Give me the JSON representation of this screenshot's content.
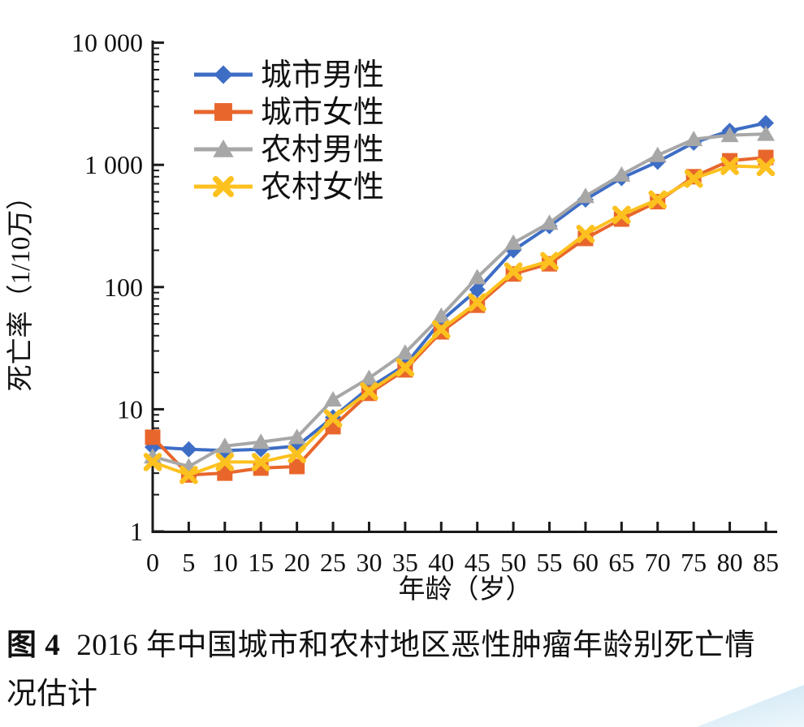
{
  "figure": {
    "caption_label": "图 4",
    "caption_text": "2016 年中国城市和农村地区恶性肿瘤年龄别死亡情况估计"
  },
  "chart_data": {
    "type": "line",
    "title": "",
    "xlabel": "年龄（岁）",
    "ylabel": "死亡率（1/10万）",
    "x": [
      0,
      5,
      10,
      15,
      20,
      25,
      30,
      35,
      40,
      45,
      50,
      55,
      60,
      65,
      70,
      75,
      80,
      85
    ],
    "y_scale": "log10",
    "ylim": [
      1,
      10000
    ],
    "ytick_values": [
      1,
      10,
      100,
      1000,
      10000
    ],
    "ytick_labels": [
      "1",
      "10",
      "100",
      "1 000",
      "10 000"
    ],
    "grid": false,
    "legend_position": "top-left-inside",
    "axis_color": "#1a1a1a",
    "series": [
      {
        "name": "城市男性",
        "marker": "diamond",
        "color": "#3d6dc5",
        "values": [
          4.9,
          4.7,
          4.6,
          4.7,
          5.0,
          8.6,
          15,
          23,
          53,
          95,
          200,
          315,
          520,
          780,
          1060,
          1520,
          1900,
          2200
        ]
      },
      {
        "name": "城市女性",
        "marker": "square",
        "color": "#e8662c",
        "values": [
          5.9,
          2.9,
          3.0,
          3.3,
          3.4,
          7.2,
          13.5,
          21,
          43,
          71,
          128,
          155,
          250,
          360,
          500,
          800,
          1080,
          1150
        ]
      },
      {
        "name": "农村男性",
        "marker": "triangle",
        "color": "#a7a7a7",
        "values": [
          4.1,
          3.4,
          5.0,
          5.4,
          5.9,
          12,
          18,
          29,
          58,
          120,
          230,
          335,
          555,
          830,
          1200,
          1620,
          1750,
          1790
        ]
      },
      {
        "name": "农村女性",
        "marker": "x",
        "color": "#fdc11f",
        "values": [
          3.7,
          2.9,
          3.7,
          3.7,
          4.3,
          8.4,
          14,
          22,
          45,
          75,
          134,
          163,
          272,
          390,
          520,
          770,
          980,
          960
        ]
      }
    ]
  },
  "watermark": {
    "color_top": "#b9dcef",
    "color_bottom": "#edf6fb"
  }
}
